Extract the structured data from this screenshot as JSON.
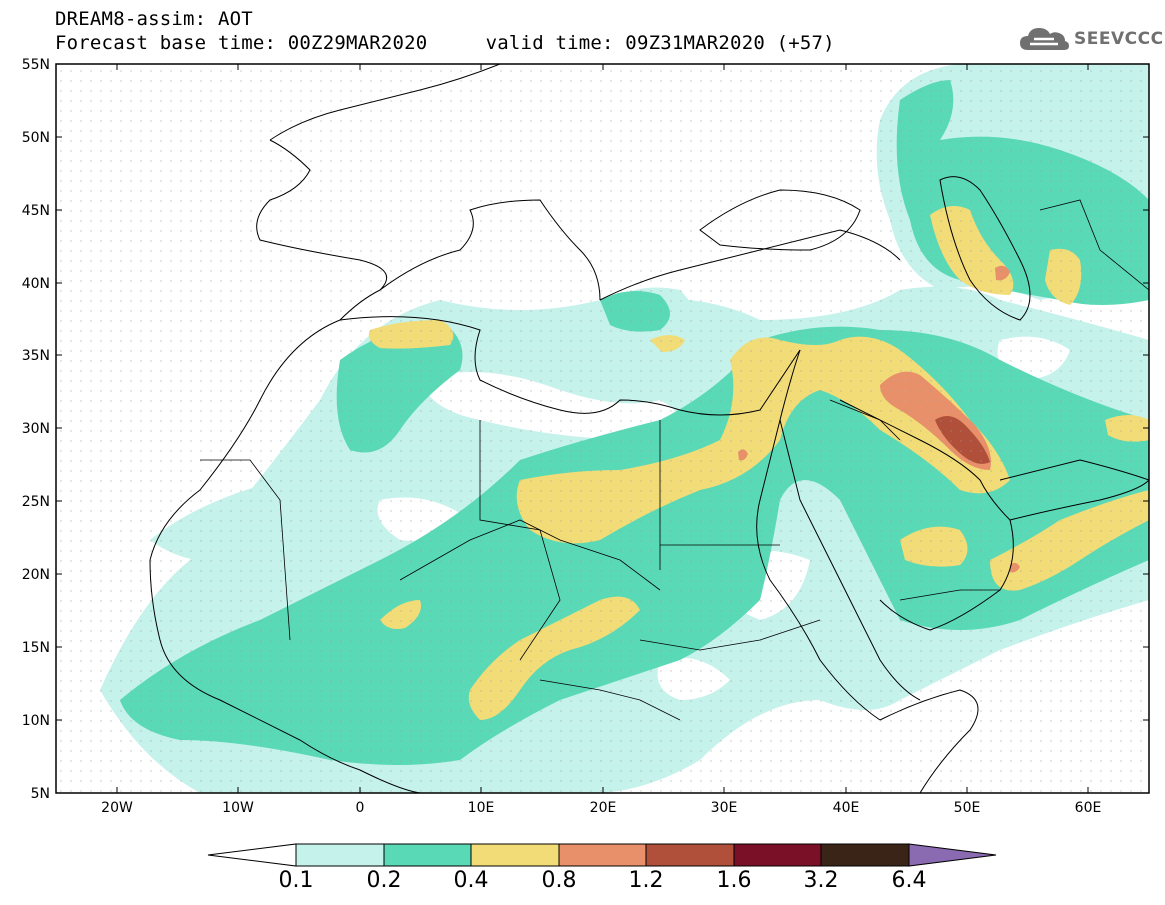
{
  "header": {
    "line1": "DREAM8-assim: AOT",
    "line2": "Forecast base time: 00Z29MAR2020     valid time: 09Z31MAR2020 (+57)"
  },
  "logo": {
    "text": "SEEVCCC",
    "icon": "cloud-icon"
  },
  "map": {
    "lon_range": [
      -25,
      65
    ],
    "lat_range": [
      5,
      55
    ],
    "lat_labels": [
      "55N",
      "50N",
      "45N",
      "40N",
      "35N",
      "30N",
      "25N",
      "20N",
      "15N",
      "10N",
      "5N"
    ],
    "lon_labels": [
      "20W",
      "10W",
      "0",
      "10E",
      "20E",
      "30E",
      "40E",
      "50E",
      "60E"
    ]
  },
  "colorbar": {
    "labels": [
      "0.1",
      "0.2",
      "0.4",
      "0.8",
      "1.2",
      "1.6",
      "3.2",
      "6.4"
    ],
    "colors": [
      "#c6f2ec",
      "#5ad9b6",
      "#f2dc78",
      "#e8906a",
      "#b0503a",
      "#7a1028",
      "#3a2418",
      "#8a6ab0"
    ],
    "under_color": "#ffffff",
    "over_color": "#8a6ab0"
  }
}
